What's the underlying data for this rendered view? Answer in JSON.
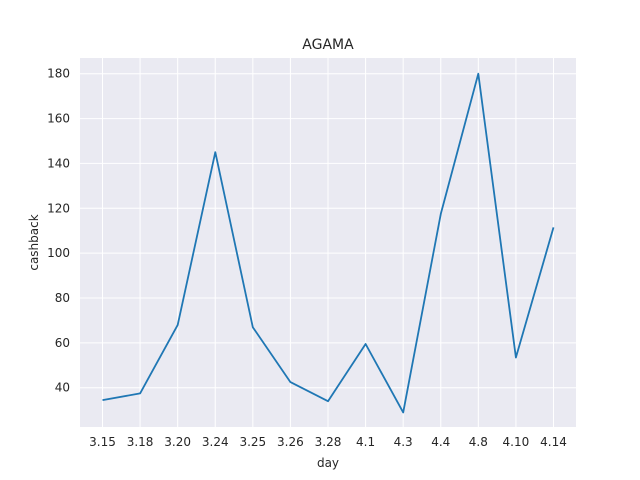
{
  "chart_data": {
    "type": "line",
    "title": "AGAMA",
    "xlabel": "day",
    "ylabel": "cashback",
    "categories": [
      "3.15",
      "3.18",
      "3.20",
      "3.24",
      "3.25",
      "3.26",
      "3.28",
      "4.1",
      "4.3",
      "4.4",
      "4.8",
      "4.10",
      "4.14"
    ],
    "series": [
      {
        "values": [
          34.5,
          37.5,
          68,
          145,
          67,
          42.5,
          34,
          59.5,
          29,
          117.5,
          180,
          53.5,
          111.5
        ]
      }
    ],
    "ylim": [
      22.5,
      187
    ],
    "yticks": [
      40,
      60,
      80,
      100,
      120,
      140,
      160,
      180
    ],
    "grid": true,
    "style": {
      "plot_background": "#eaeaf2",
      "line_color": "#1f77b4",
      "grid_color": "#ffffff"
    }
  }
}
